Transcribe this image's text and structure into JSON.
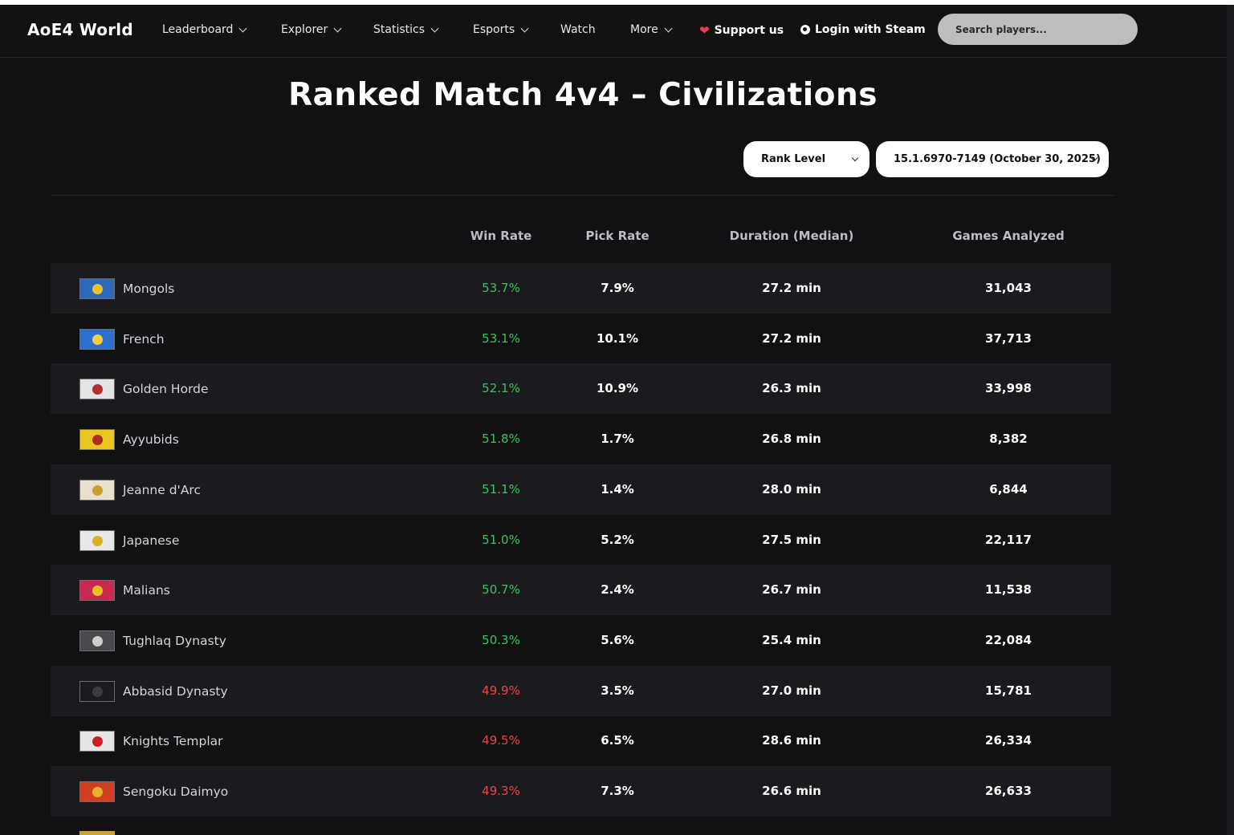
{
  "nav": {
    "brand": "AoE4 World",
    "items": [
      {
        "label": "Leaderboard",
        "dropdown": true
      },
      {
        "label": "Explorer",
        "dropdown": true
      },
      {
        "label": "Statistics",
        "dropdown": true
      },
      {
        "label": "Esports",
        "dropdown": true
      },
      {
        "label": "Watch",
        "dropdown": false
      },
      {
        "label": "More",
        "dropdown": true
      }
    ],
    "support": "Support us",
    "login": "Login with Steam",
    "search_placeholder": "Search players..."
  },
  "page": {
    "title": "Ranked Match 4v4 – Civilizations",
    "filter_rank": "Rank Level",
    "filter_patch": "15.1.6970-7149 (October 30, 2025)"
  },
  "table": {
    "columns": [
      "Win Rate",
      "Pick Rate",
      "Duration (Median)",
      "Games Analyzed"
    ],
    "rows": [
      {
        "civ": "Mongols",
        "win": "53.7%",
        "pick": "7.9%",
        "duration": "27.2 min",
        "games": "31,043",
        "trend": "up",
        "flag": [
          "#2f68b8",
          "#e8c230"
        ]
      },
      {
        "civ": "French",
        "win": "53.1%",
        "pick": "10.1%",
        "duration": "27.2 min",
        "games": "37,713",
        "trend": "up",
        "flag": [
          "#2d6fd0",
          "#f0d040"
        ]
      },
      {
        "civ": "Golden Horde",
        "win": "52.1%",
        "pick": "10.9%",
        "duration": "26.3 min",
        "games": "33,998",
        "trend": "up",
        "flag": [
          "#e4e4e4",
          "#b03030"
        ]
      },
      {
        "civ": "Ayyubids",
        "win": "51.8%",
        "pick": "1.7%",
        "duration": "26.8 min",
        "games": "8,382",
        "trend": "up",
        "flag": [
          "#e8c520",
          "#b02a20"
        ]
      },
      {
        "civ": "Jeanne d'Arc",
        "win": "51.1%",
        "pick": "1.4%",
        "duration": "28.0 min",
        "games": "6,844",
        "trend": "up",
        "flag": [
          "#e8e0cc",
          "#c9a030"
        ]
      },
      {
        "civ": "Japanese",
        "win": "51.0%",
        "pick": "5.2%",
        "duration": "27.5 min",
        "games": "22,117",
        "trend": "up",
        "flag": [
          "#e8e8e8",
          "#d8b020"
        ]
      },
      {
        "civ": "Malians",
        "win": "50.7%",
        "pick": "2.4%",
        "duration": "26.7 min",
        "games": "11,538",
        "trend": "up",
        "flag": [
          "#c82a50",
          "#e8c020"
        ]
      },
      {
        "civ": "Tughlaq Dynasty",
        "win": "50.3%",
        "pick": "5.6%",
        "duration": "25.4 min",
        "games": "22,084",
        "trend": "up",
        "flag": [
          "#4a4a4e",
          "#cfcfcf"
        ]
      },
      {
        "civ": "Abbasid Dynasty",
        "win": "49.9%",
        "pick": "3.5%",
        "duration": "27.0 min",
        "games": "15,781",
        "trend": "down",
        "flag": [
          "#1c1c1e",
          "#3c3c40"
        ]
      },
      {
        "civ": "Knights Templar",
        "win": "49.5%",
        "pick": "6.5%",
        "duration": "28.6 min",
        "games": "26,334",
        "trend": "down",
        "flag": [
          "#e6e6e6",
          "#c82020"
        ]
      },
      {
        "civ": "Sengoku Daimyo",
        "win": "49.3%",
        "pick": "7.3%",
        "duration": "26.6 min",
        "games": "26,633",
        "trend": "down",
        "flag": [
          "#d04020",
          "#e8b030"
        ]
      }
    ]
  }
}
